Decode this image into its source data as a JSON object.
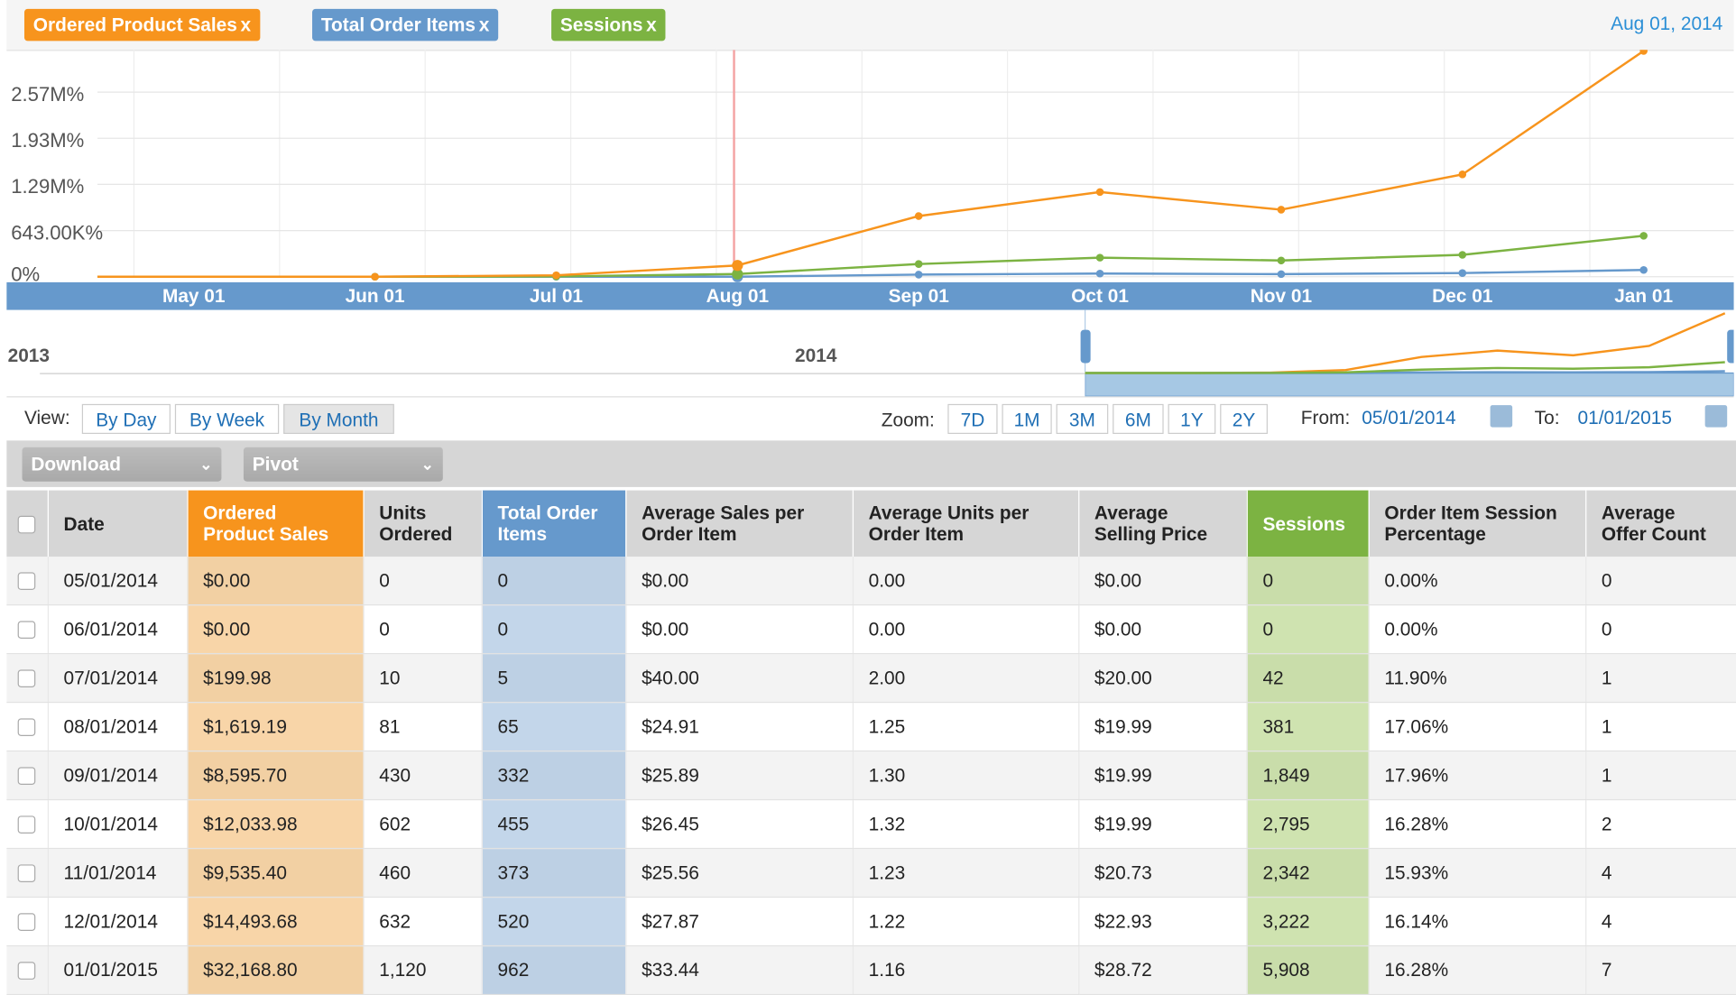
{
  "filters": [
    {
      "label": "Ordered Product Sales",
      "color": "#f7941d"
    },
    {
      "label": "Total Order Items",
      "color": "#6699cc"
    },
    {
      "label": "Sessions",
      "color": "#7cb342"
    }
  ],
  "remove_glyph": "x",
  "hover_date": "Aug 01, 2014",
  "chart_data": {
    "type": "line",
    "x": [
      "May 01",
      "Jun 01",
      "Jul 01",
      "Aug 01",
      "Sep 01",
      "Oct 01",
      "Nov 01",
      "Dec 01",
      "Jan 01"
    ],
    "yticks": [
      "0%",
      "643.00K%",
      "1.29M%",
      "1.93M%",
      "2.57M%"
    ],
    "ylim": [
      0,
      3200000
    ],
    "grid": true,
    "series": [
      {
        "name": "Ordered Product Sales",
        "color": "#f7941d",
        "values": [
          0,
          0,
          20000,
          160000,
          860000,
          1200000,
          950000,
          1450000,
          3200000
        ]
      },
      {
        "name": "Total Order Items",
        "color": "#6699cc",
        "values": [
          0,
          0,
          0,
          0,
          30000,
          45000,
          37000,
          52000,
          96000
        ]
      },
      {
        "name": "Sessions",
        "color": "#7cb342",
        "values": [
          0,
          0,
          4000,
          38000,
          180000,
          270000,
          230000,
          310000,
          580000
        ]
      }
    ]
  },
  "navigator": {
    "years": [
      "2013",
      "2014"
    ]
  },
  "view": {
    "label": "View:",
    "options": [
      "By Day",
      "By Week",
      "By Month"
    ],
    "selected": "By Month"
  },
  "zoom": {
    "label": "Zoom:",
    "options": [
      "7D",
      "1M",
      "3M",
      "6M",
      "1Y",
      "2Y"
    ]
  },
  "range": {
    "from_label": "From:",
    "from": "05/01/2014",
    "to_label": "To:",
    "to": "01/01/2015"
  },
  "toolbar": {
    "download": "Download",
    "pivot": "Pivot"
  },
  "table": {
    "headers": [
      "Date",
      "Ordered Product Sales",
      "Units Ordered",
      "Total Order Items",
      "Average Sales per Order Item",
      "Average Units per Order Item",
      "Average Selling Price",
      "Sessions",
      "Order Item Session Percentage",
      "Average Offer Count"
    ],
    "rows": [
      [
        "05/01/2014",
        "$0.00",
        "0",
        "0",
        "$0.00",
        "0.00",
        "$0.00",
        "0",
        "0.00%",
        "0"
      ],
      [
        "06/01/2014",
        "$0.00",
        "0",
        "0",
        "$0.00",
        "0.00",
        "$0.00",
        "0",
        "0.00%",
        "0"
      ],
      [
        "07/01/2014",
        "$199.98",
        "10",
        "5",
        "$40.00",
        "2.00",
        "$20.00",
        "42",
        "11.90%",
        "1"
      ],
      [
        "08/01/2014",
        "$1,619.19",
        "81",
        "65",
        "$24.91",
        "1.25",
        "$19.99",
        "381",
        "17.06%",
        "1"
      ],
      [
        "09/01/2014",
        "$8,595.70",
        "430",
        "332",
        "$25.89",
        "1.30",
        "$19.99",
        "1,849",
        "17.96%",
        "1"
      ],
      [
        "10/01/2014",
        "$12,033.98",
        "602",
        "455",
        "$26.45",
        "1.32",
        "$19.99",
        "2,795",
        "16.28%",
        "2"
      ],
      [
        "11/01/2014",
        "$9,535.40",
        "460",
        "373",
        "$25.56",
        "1.23",
        "$20.73",
        "2,342",
        "15.93%",
        "4"
      ],
      [
        "12/01/2014",
        "$14,493.68",
        "632",
        "520",
        "$27.87",
        "1.22",
        "$22.93",
        "3,222",
        "16.14%",
        "4"
      ],
      [
        "01/01/2015",
        "$32,168.80",
        "1,120",
        "962",
        "$33.44",
        "1.16",
        "$28.72",
        "5,908",
        "16.28%",
        "7"
      ]
    ]
  }
}
